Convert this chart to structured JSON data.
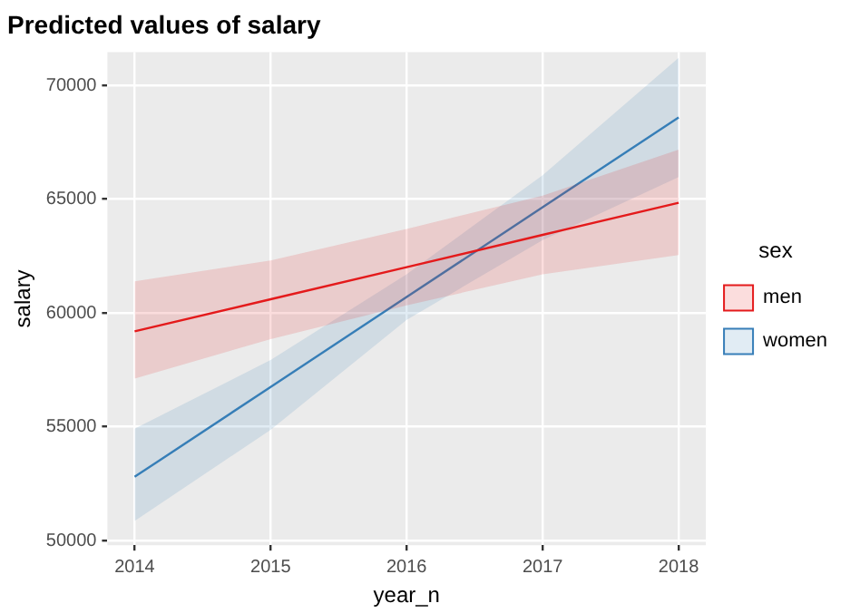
{
  "chart_data": {
    "type": "line",
    "title": "Predicted values of salary",
    "xlabel": "year_n",
    "ylabel": "salary",
    "legend_title": "sex",
    "x": [
      2014,
      2015,
      2016,
      2017,
      2018
    ],
    "series": [
      {
        "name": "men",
        "color": "#e41a1c",
        "values": [
          59190,
          60600,
          62010,
          63430,
          64840
        ],
        "lower": [
          57120,
          58850,
          60330,
          61700,
          62540
        ],
        "upper": [
          61390,
          62300,
          63690,
          65150,
          67170
        ]
      },
      {
        "name": "women",
        "color": "#377eb8",
        "values": [
          52800,
          56750,
          60700,
          64640,
          68590
        ],
        "lower": [
          50860,
          54870,
          59700,
          63200,
          65970
        ],
        "upper": [
          54920,
          57930,
          61700,
          66050,
          71210
        ]
      }
    ],
    "xlim": [
      2013.8,
      2018.2
    ],
    "xticks": [
      2014,
      2015,
      2016,
      2017,
      2018
    ],
    "ylim": [
      49800,
      71450
    ],
    "yticks": [
      50000,
      55000,
      60000,
      65000,
      70000
    ],
    "grid": true,
    "legend": "right",
    "marker": "none",
    "line_style": "solid"
  }
}
